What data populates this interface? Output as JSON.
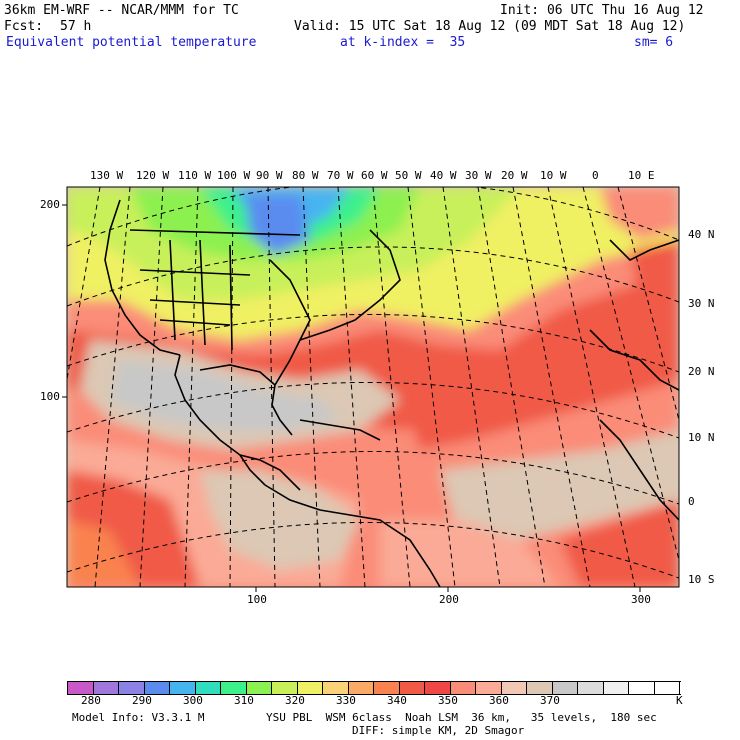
{
  "header": {
    "model_title": "36km EM-WRF -- NCAR/MMM for TC",
    "init": "Init: 06 UTC Thu 16 Aug 12",
    "fcst_label": "Fcst:",
    "fcst_value": "57 h",
    "valid": "Valid: 15 UTC Sat 18 Aug 12 (09 MDT Sat 18 Aug 12)",
    "field_name": "Equivalent potential temperature",
    "level": "at k-index =  35",
    "smoothing": "sm= 6"
  },
  "map": {
    "longitude_labels": [
      "130 W",
      "120 W",
      "110 W",
      "100 W",
      "90 W",
      "80 W",
      "70 W",
      "60 W",
      "50 W",
      "40 W",
      "30 W",
      "20 W",
      "10 W",
      "0",
      "10 E"
    ],
    "latitude_labels": [
      "40 N",
      "30 N",
      "20 N",
      "10 N",
      "0",
      "10 S"
    ],
    "left_ticks": [
      "200",
      "100"
    ],
    "bottom_ticks": [
      "100",
      "200",
      "300"
    ]
  },
  "legend": {
    "values": [
      "280",
      "290",
      "300",
      "310",
      "320",
      "330",
      "340",
      "350",
      "360",
      "370"
    ],
    "unit": "K",
    "colors": [
      "#c85ac8",
      "#a078dc",
      "#8c82e6",
      "#5a8cf0",
      "#46b4f0",
      "#32dcbe",
      "#3cf08c",
      "#8cf050",
      "#c8f05a",
      "#f0f064",
      "#fad278",
      "#faaa64",
      "#fa8250",
      "#f05a46",
      "#f04646",
      "#fa8c78",
      "#faaa96",
      "#f0c8b4",
      "#dcc8b4",
      "#c8c8c8",
      "#dcdcdc",
      "#f0f0f0",
      "#ffffff",
      "#ffffff"
    ]
  },
  "footer": {
    "model_info": "Model Info: V3.3.1 M",
    "physics": "YSU PBL  WSM 6class  Noah LSM  36 km,   35 levels,  180 sec",
    "diffusion": "DIFF: simple KM, 2D Smagor"
  }
}
